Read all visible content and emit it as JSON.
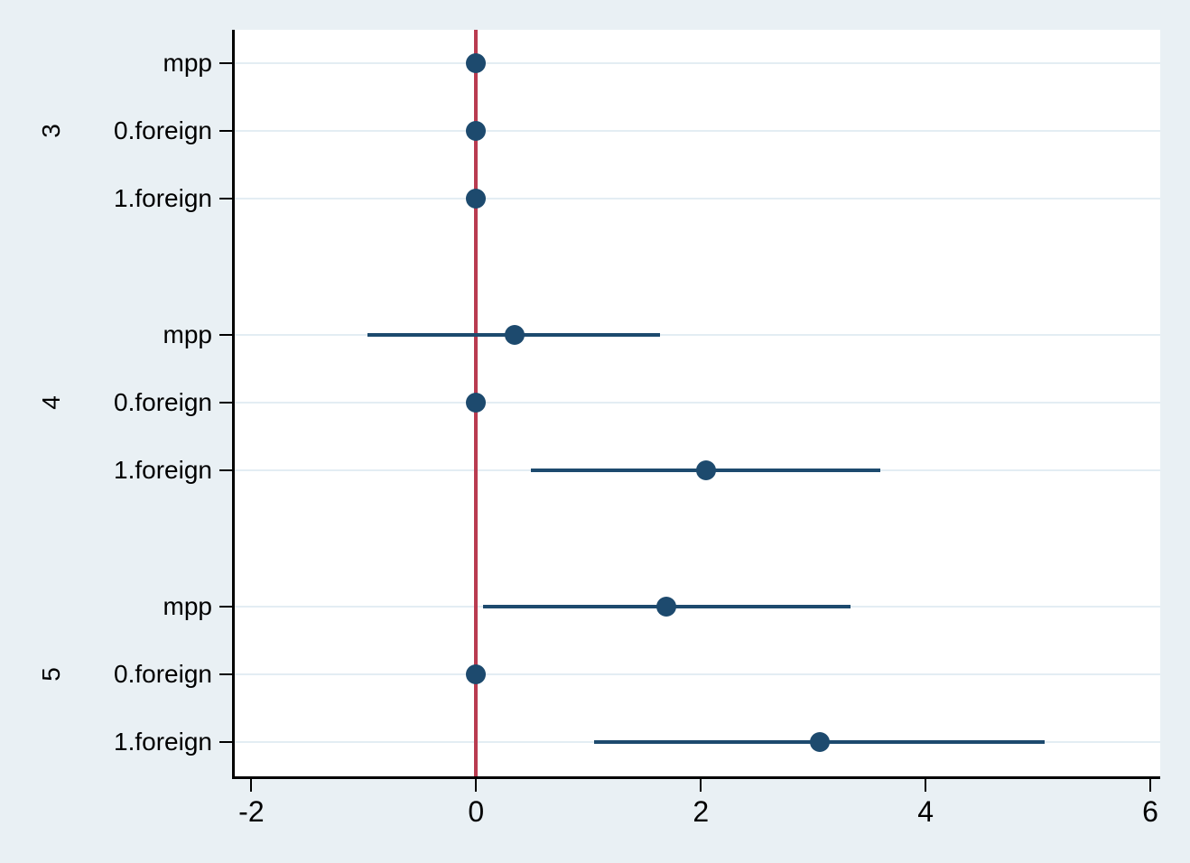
{
  "figure": {
    "background_color": "#e9f0f4",
    "plot_background_color": "#ffffff",
    "title": ""
  },
  "chart_data": {
    "type": "scatter",
    "subtype": "coefficient-plot-dot-with-horizontal-ci",
    "title": "",
    "xlabel": "",
    "ylabel": "",
    "xlim": [
      -2.148,
      6.088
    ],
    "grid": "horizontal-rows-only",
    "legend": "none",
    "x_axis": {
      "ticks": [
        -2,
        0,
        2,
        4,
        6
      ],
      "tick_labels": [
        "-2",
        "0",
        "2",
        "4",
        "6"
      ]
    },
    "reference_line": {
      "x": 0
    },
    "groups": [
      {
        "label": "3",
        "rows": [
          {
            "label": "mpp",
            "estimate": 0,
            "ci_low": 0,
            "ci_high": 0
          },
          {
            "label": "0.foreign",
            "estimate": 0,
            "ci_low": 0,
            "ci_high": 0
          },
          {
            "label": "1.foreign",
            "estimate": 0,
            "ci_low": 0,
            "ci_high": 0
          }
        ]
      },
      {
        "label": "4",
        "rows": [
          {
            "label": "mpp",
            "estimate": 0.34,
            "ci_low": -0.97,
            "ci_high": 1.64
          },
          {
            "label": "0.foreign",
            "estimate": 0,
            "ci_low": 0,
            "ci_high": 0
          },
          {
            "label": "1.foreign",
            "estimate": 2.05,
            "ci_low": 0.49,
            "ci_high": 3.6
          }
        ]
      },
      {
        "label": "5",
        "rows": [
          {
            "label": "mpp",
            "estimate": 1.69,
            "ci_low": 0.06,
            "ci_high": 3.33
          },
          {
            "label": "0.foreign",
            "estimate": 0,
            "ci_low": 0,
            "ci_high": 0
          },
          {
            "label": "1.foreign",
            "estimate": 3.06,
            "ci_low": 1.05,
            "ci_high": 5.06
          }
        ]
      }
    ],
    "colors": {
      "marker": "#1d4a6e",
      "ci_line": "#1d4a6e",
      "zero_line": "#b93b50",
      "grid_line": "#e3edf3",
      "axis": "#000000",
      "text": "#000000"
    }
  }
}
